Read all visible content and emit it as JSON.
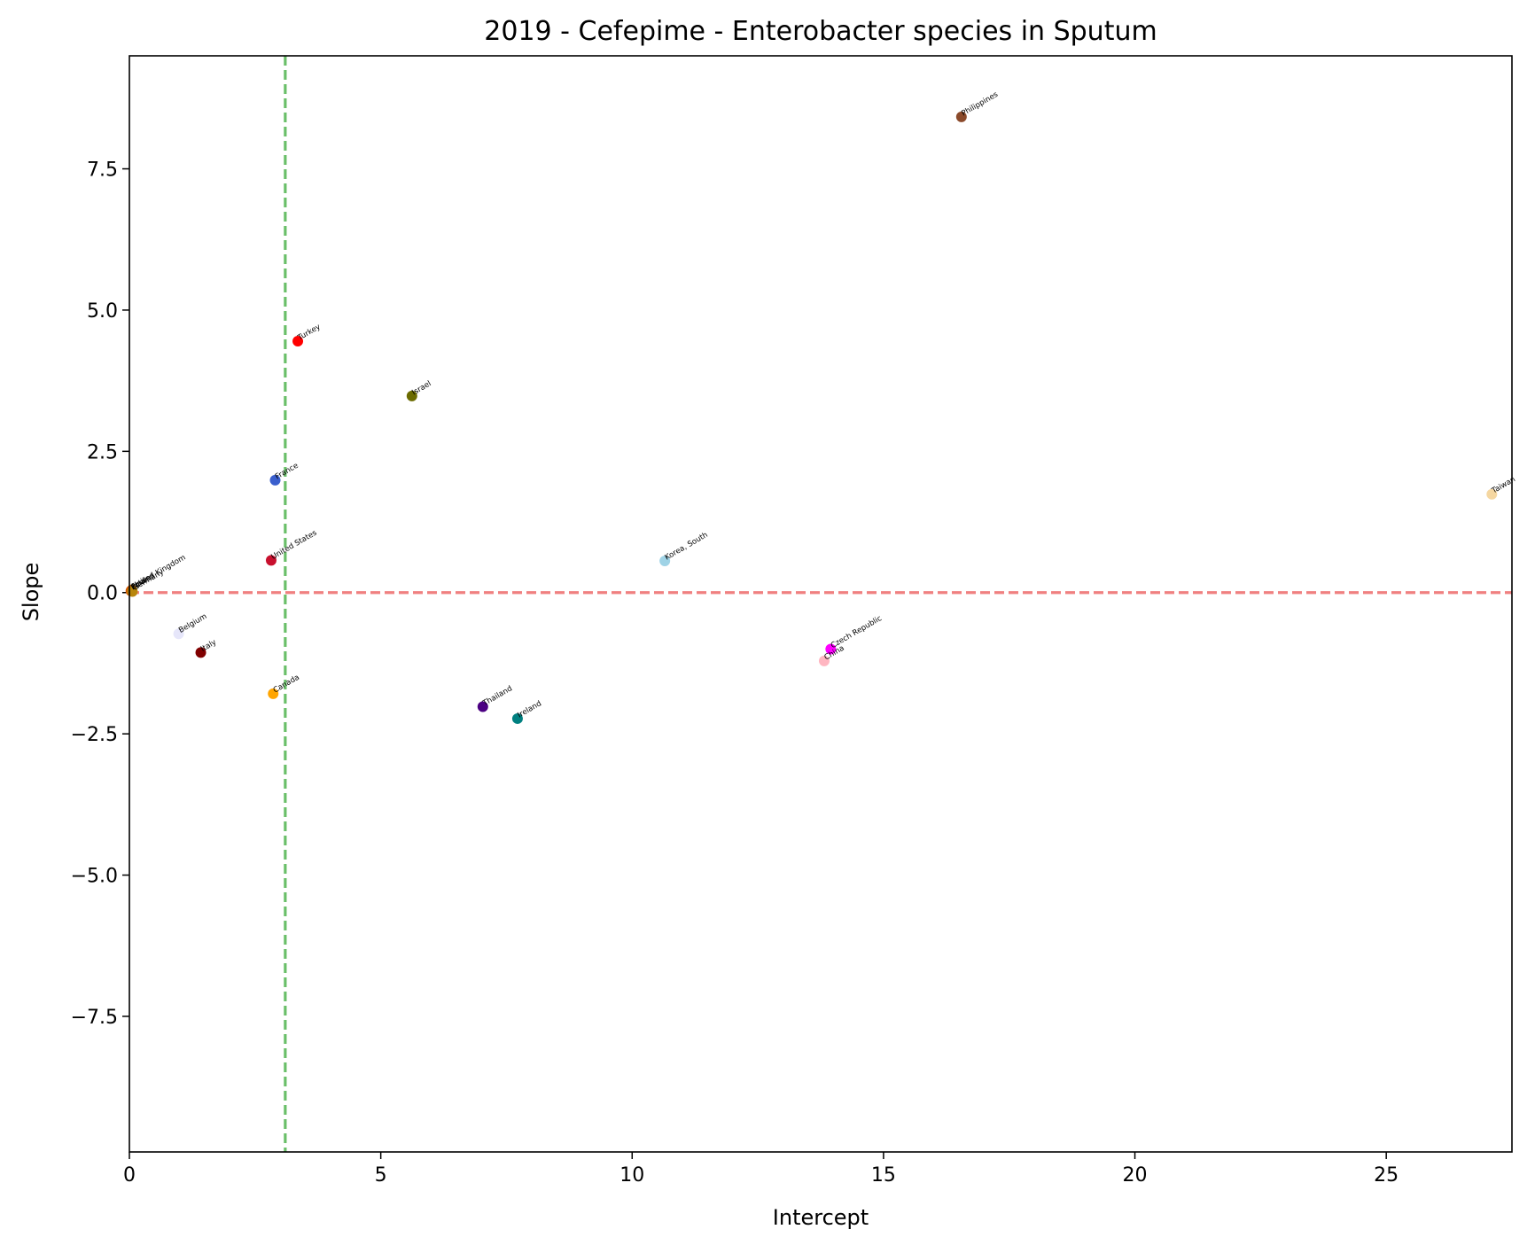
{
  "chart_data": {
    "type": "scatter",
    "title": "2019 - Cefepime - Enterobacter species in Sputum",
    "xlabel": "Intercept",
    "ylabel": "Slope",
    "xlim": [
      0,
      27.5
    ],
    "ylim": [
      -9.9,
      9.5
    ],
    "xticks": [
      0,
      5,
      10,
      15,
      20,
      25
    ],
    "xtick_labels": [
      "0",
      "5",
      "10",
      "15",
      "20",
      "25"
    ],
    "yticks": [
      -7.5,
      -5.0,
      -2.5,
      0.0,
      2.5,
      5.0,
      7.5
    ],
    "ytick_labels": [
      "−7.5",
      "−5.0",
      "−2.5",
      "0.0",
      "2.5",
      "5.0",
      "7.5"
    ],
    "grid": false,
    "reference_lines": [
      {
        "orientation": "horizontal",
        "value": 0.0,
        "color": "#f08080",
        "style": "dashed"
      },
      {
        "orientation": "vertical",
        "value": 3.1,
        "color": "#6abf69",
        "style": "dashed"
      }
    ],
    "points": [
      {
        "label": "Philippines",
        "x": 16.55,
        "y": 8.42,
        "color": "#8b4a2b"
      },
      {
        "label": "Turkey",
        "x": 3.35,
        "y": 4.45,
        "color": "#ff0000"
      },
      {
        "label": "Israel",
        "x": 5.62,
        "y": 3.48,
        "color": "#6b6b00"
      },
      {
        "label": "France",
        "x": 2.9,
        "y": 1.99,
        "color": "#3a5fcd"
      },
      {
        "label": "Taiwan",
        "x": 27.1,
        "y": 1.74,
        "color": "#f5d7a1"
      },
      {
        "label": "United States",
        "x": 2.82,
        "y": 0.57,
        "color": "#c8102e"
      },
      {
        "label": "Korea, South",
        "x": 10.65,
        "y": 0.56,
        "color": "#9fd3e6"
      },
      {
        "label": "United Kingdom",
        "x": 0.05,
        "y": 0.05,
        "color": "#f5a623"
      },
      {
        "label": "Spain",
        "x": 0.04,
        "y": 0.04,
        "color": "#e67e22"
      },
      {
        "label": "Poland",
        "x": 0.03,
        "y": 0.03,
        "color": "#d35400"
      },
      {
        "label": "Germany",
        "x": 0.06,
        "y": 0.02,
        "color": "#b8860b"
      },
      {
        "label": "Belgium",
        "x": 0.98,
        "y": -0.73,
        "color": "#e6e6fa"
      },
      {
        "label": "Italy",
        "x": 1.42,
        "y": -1.06,
        "color": "#800000"
      },
      {
        "label": "Czech Republic",
        "x": 13.95,
        "y": -1.0,
        "color": "#ff00ff"
      },
      {
        "label": "China",
        "x": 13.82,
        "y": -1.21,
        "color": "#ffb6c1"
      },
      {
        "label": "Canada",
        "x": 2.86,
        "y": -1.79,
        "color": "#ffa500"
      },
      {
        "label": "Thailand",
        "x": 7.03,
        "y": -2.02,
        "color": "#4b0082"
      },
      {
        "label": "Ireland",
        "x": 7.72,
        "y": -2.23,
        "color": "#008080"
      }
    ]
  }
}
